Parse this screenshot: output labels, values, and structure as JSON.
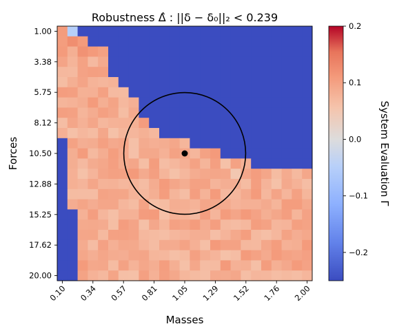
{
  "chart_data": {
    "type": "heatmap",
    "title_prefix": "Robustness",
    "title_formula": "Δ̂ : ||δ − δ₀||₂ < 0.239",
    "xlabel": "Masses",
    "ylabel": "Forces",
    "x_ticks": [
      "0.10",
      "0.34",
      "0.57",
      "0.81",
      "1.05",
      "1.29",
      "1.52",
      "1.76",
      "2.00"
    ],
    "y_ticks": [
      "1.00",
      "3.38",
      "5.75",
      "8.12",
      "10.50",
      "12.88",
      "15.25",
      "17.62",
      "20.00"
    ],
    "x_range": [
      0.1,
      2.0
    ],
    "y_range": [
      1.0,
      20.0
    ],
    "grid_size": 25,
    "colormap": "coolwarm",
    "colorbar": {
      "label": "System Evaluation Γ",
      "vmin": -0.25,
      "vmax": 0.2,
      "ticks": [
        "0.2",
        "0.1",
        "0.0",
        "−0.1",
        "−0.2"
      ],
      "tick_values": [
        0.2,
        0.1,
        0.0,
        -0.1,
        -0.2
      ]
    },
    "nominal_point": {
      "mass": 1.05,
      "force": 10.5
    },
    "radius_normalized": 0.239,
    "blue_region_value": -0.25,
    "colors": {
      "low": "#3b4cc0",
      "mid": "#dddddd",
      "high": "#b40426",
      "circle": "#000000"
    }
  }
}
